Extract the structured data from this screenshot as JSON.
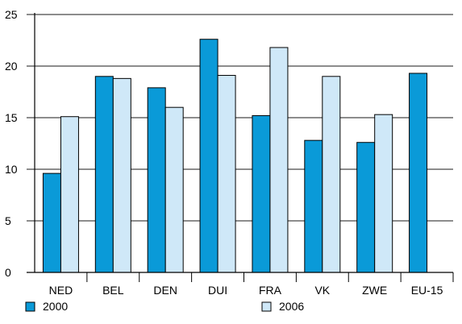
{
  "chart_data": {
    "type": "bar",
    "categories": [
      "NED",
      "BEL",
      "DEN",
      "DUI",
      "FRA",
      "VK",
      "ZWE",
      "EU-15"
    ],
    "series": [
      {
        "name": "2000",
        "values": [
          9.6,
          19.0,
          17.9,
          22.6,
          15.2,
          12.8,
          12.6,
          19.3
        ],
        "color": "#0a9ad8"
      },
      {
        "name": "2006",
        "values": [
          15.1,
          18.8,
          16.0,
          19.1,
          21.8,
          19.0,
          15.3,
          null
        ],
        "color": "#cfe8f8"
      }
    ],
    "title": "",
    "xlabel": "",
    "ylabel": "",
    "ylim": [
      0,
      25
    ],
    "yticks": [
      0,
      5,
      10,
      15,
      20,
      25
    ],
    "grid": true,
    "legend_position": "bottom"
  }
}
